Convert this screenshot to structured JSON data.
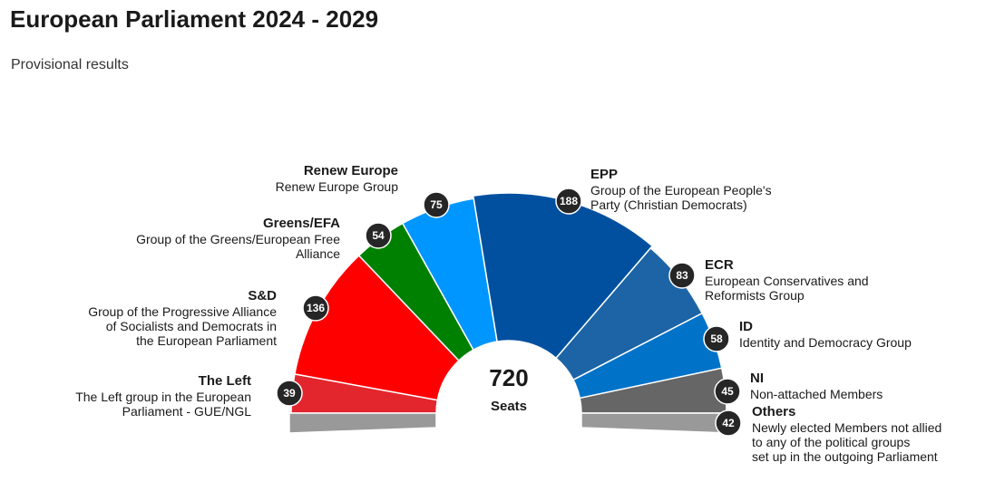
{
  "header": {
    "title": "European Parliament 2024 - 2029",
    "subtitle": "Provisional results"
  },
  "chart_data": {
    "type": "pie",
    "title": "European Parliament 2024 - 2029",
    "subtitle": "Provisional results",
    "total_value": "720",
    "total_label": "Seats",
    "series": [
      {
        "key": "others",
        "name": "Others",
        "full_name": "Newly elected Members not allied to any of the political groups set up in the outgoing Parliament",
        "full_lines": [
          "Newly elected Members not allied",
          "to any of the political groups",
          "set up in the outgoing Parliament"
        ],
        "value": 42,
        "color": "#999999",
        "below": true
      },
      {
        "key": "left",
        "name": "The Left",
        "full_name": "The Left group in the European Parliament - GUE/NGL",
        "full_lines": [
          "The Left group in the European",
          "Parliament - GUE/NGL"
        ],
        "value": 39,
        "color": "#e3262e"
      },
      {
        "key": "sd",
        "name": "S&D",
        "full_name": "Group of the Progressive Alliance of Socialists and Democrats in the European Parliament",
        "full_lines": [
          "Group of the Progressive Alliance",
          "of Socialists and Democrats in",
          "the European Parliament"
        ],
        "value": 136,
        "color": "#ff0000"
      },
      {
        "key": "greens",
        "name": "Greens/EFA",
        "full_name": "Group of the Greens/European Free Alliance",
        "full_lines": [
          "Group of the Greens/European Free",
          "Alliance"
        ],
        "value": 54,
        "color": "#008000"
      },
      {
        "key": "renew",
        "name": "Renew Europe",
        "full_name": "Renew Europe Group",
        "full_lines": [
          "Renew Europe Group"
        ],
        "value": 75,
        "color": "#0096ff"
      },
      {
        "key": "epp",
        "name": "EPP",
        "full_name": "Group of the European People's Party (Christian Democrats)",
        "full_lines": [
          "Group of the European People's",
          "Party (Christian Democrats)"
        ],
        "value": 188,
        "color": "#00509f"
      },
      {
        "key": "ecr",
        "name": "ECR",
        "full_name": "European Conservatives and Reformists Group",
        "full_lines": [
          "European Conservatives and",
          "Reformists Group"
        ],
        "value": 83,
        "color": "#1c64a5"
      },
      {
        "key": "id",
        "name": "ID",
        "full_name": "Identity and Democracy Group",
        "full_lines": [
          "Identity and Democracy Group"
        ],
        "value": 58,
        "color": "#0073c8"
      },
      {
        "key": "ni",
        "name": "NI",
        "full_name": "Non-attached Members",
        "full_lines": [
          "Non-attached Members"
        ],
        "value": 45,
        "color": "#666666"
      }
    ]
  }
}
